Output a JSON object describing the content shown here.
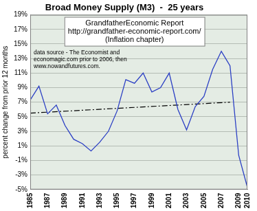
{
  "chart_data": {
    "type": "line",
    "title": "Broad Money Supply (M3)  -  25 years",
    "subtitle": [
      "GrandfatherEconomic Report",
      "http://grandfather-economic-report.com/",
      "(Inflation chapter)"
    ],
    "annotations": [
      "data source - The Economist and",
      "economagic.com prior to 2006, then",
      "www.nowandfutures.com."
    ],
    "y_label": "percent change from prior 12 months",
    "categories": [
      "1985",
      null,
      "1987",
      null,
      "1989",
      null,
      "1991",
      null,
      "1993",
      null,
      "1995",
      null,
      "1997",
      null,
      "1999",
      null,
      "2001",
      null,
      "2003",
      null,
      "2005",
      null,
      "2007",
      null,
      "2009",
      "2010"
    ],
    "series": [
      {
        "color": "#2b3fc4",
        "line_style": "solid",
        "marker": "none",
        "values": [
          7.3,
          9.2,
          5.4,
          6.6,
          3.8,
          1.9,
          1.3,
          0.3,
          1.5,
          3.0,
          5.8,
          10.1,
          9.6,
          11.0,
          8.4,
          9.0,
          11.0,
          6.0,
          3.2,
          6.4,
          7.8,
          11.5,
          14.0,
          12.0,
          -0.3,
          -4.7
        ]
      },
      {
        "color": "#000000",
        "line_style": "dashdot",
        "marker": "none",
        "values": [
          5.5,
          null,
          null,
          null,
          null,
          null,
          null,
          null,
          null,
          null,
          null,
          null,
          null,
          null,
          null,
          null,
          null,
          null,
          null,
          null,
          null,
          null,
          null,
          7.0,
          null,
          null
        ]
      }
    ],
    "ylim": [
      -5,
      19
    ],
    "yticks": [
      {
        "value": -5,
        "label": "-5%"
      },
      {
        "value": -3,
        "label": "-3%"
      },
      {
        "value": -1,
        "label": "-1%"
      },
      {
        "value": 1,
        "label": "1%"
      },
      {
        "value": 3,
        "label": "3%"
      },
      {
        "value": 5,
        "label": "5%"
      },
      {
        "value": 7,
        "label": "7%"
      },
      {
        "value": 9,
        "label": "9%"
      },
      {
        "value": 11,
        "label": "11%"
      },
      {
        "value": 13,
        "label": "13%"
      },
      {
        "value": 15,
        "label": "15%"
      },
      {
        "value": 17,
        "label": "17%"
      },
      {
        "value": 19,
        "label": "19%"
      }
    ],
    "grid": true
  }
}
